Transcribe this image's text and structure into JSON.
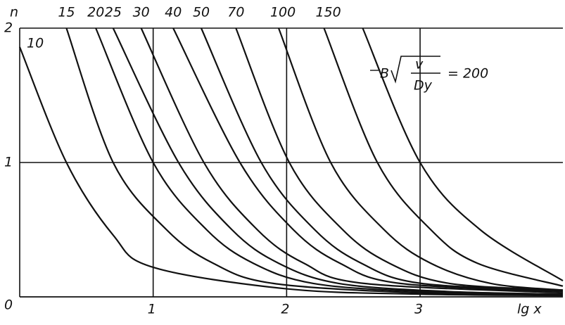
{
  "chart_data": {
    "type": "line",
    "x_label": "lg x",
    "y_label": "n",
    "annotation": {
      "prefix": "B",
      "numerator": "v",
      "denominator": "Dy"
    },
    "xlim": [
      0,
      4.07
    ],
    "ylim": [
      0,
      2
    ],
    "xticks": [
      1,
      2,
      3
    ],
    "yticks": [
      0,
      1,
      2
    ],
    "grid": true,
    "color": "#111111",
    "series": [
      {
        "name": "10",
        "x": [
          0,
          0.35,
          0.7,
          1.0,
          2.0,
          3.0,
          4.07
        ],
        "values": [
          1.86,
          1,
          0.46,
          0.22,
          0.06,
          0.02,
          0.01
        ]
      },
      {
        "name": "15",
        "x": [
          0.35,
          0.7,
          1.1,
          1.45,
          1.9,
          3.0,
          4.07
        ],
        "values": [
          2,
          1,
          0.5,
          0.25,
          0.1,
          0.03,
          0.02
        ]
      },
      {
        "name": "20",
        "x": [
          0.57,
          1.0,
          1.4,
          1.75,
          2.2,
          3.0,
          4.07
        ],
        "values": [
          2,
          1,
          0.5,
          0.25,
          0.1,
          0.04,
          0.02
        ]
      },
      {
        "name": "25",
        "x": [
          0.7,
          1.19,
          1.59,
          1.94,
          2.39,
          3.2,
          4.07
        ],
        "values": [
          2,
          1,
          0.5,
          0.25,
          0.1,
          0.04,
          0.02
        ]
      },
      {
        "name": "30",
        "x": [
          0.91,
          1.38,
          1.78,
          2.13,
          2.58,
          4.07
        ],
        "values": [
          2,
          1,
          0.5,
          0.25,
          0.1,
          0.03
        ]
      },
      {
        "name": "40",
        "x": [
          1.15,
          1.65,
          2.05,
          2.4,
          2.85,
          4.07
        ],
        "values": [
          2,
          1,
          0.5,
          0.25,
          0.1,
          0.04
        ]
      },
      {
        "name": "50",
        "x": [
          1.36,
          1.81,
          2.21,
          2.56,
          3.01,
          4.07
        ],
        "values": [
          2,
          1,
          0.5,
          0.25,
          0.1,
          0.05
        ]
      },
      {
        "name": "70",
        "x": [
          1.62,
          2.02,
          2.42,
          2.77,
          3.22,
          4.07
        ],
        "values": [
          2,
          1,
          0.5,
          0.25,
          0.1,
          0.05
        ]
      },
      {
        "name": "100",
        "x": [
          1.94,
          2.33,
          2.73,
          3.08,
          3.53,
          4.07
        ],
        "values": [
          2,
          1,
          0.5,
          0.25,
          0.1,
          0.05
        ]
      },
      {
        "name": "150",
        "x": [
          2.28,
          2.68,
          3.08,
          3.43,
          4.07
        ],
        "values": [
          2,
          1,
          0.5,
          0.25,
          0.08
        ]
      },
      {
        "name": "= 200",
        "x": [
          2.57,
          3.0,
          3.45,
          4.07
        ],
        "values": [
          2,
          1,
          0.5,
          0.12
        ]
      }
    ]
  }
}
